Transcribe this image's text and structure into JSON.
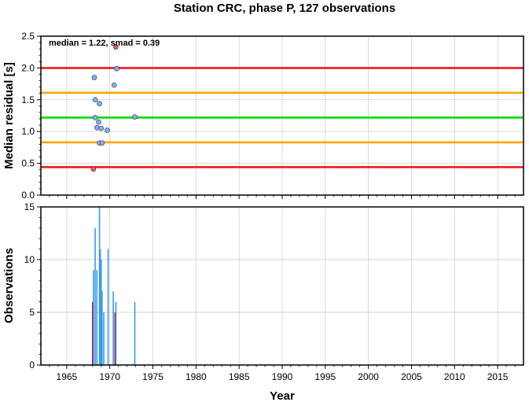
{
  "chart_data": [
    {
      "type": "scatter",
      "title": "Station CRC, phase P, 127 observations",
      "annotation": "median = 1.22, smad = 0.39",
      "xlabel": "",
      "ylabel": "Median residual [s]",
      "xlim": [
        1962,
        2018
      ],
      "ylim": [
        0,
        2.5
      ],
      "y_ticks": [
        "0.0",
        "0.5",
        "1.0",
        "1.5",
        "2.0",
        "2.5"
      ],
      "grid": true,
      "hlines": [
        {
          "y": 2.0,
          "color": "#ee1c1c"
        },
        {
          "y": 1.61,
          "color": "#ffa500"
        },
        {
          "y": 1.22,
          "color": "#00dd00"
        },
        {
          "y": 0.83,
          "color": "#ffa500"
        },
        {
          "y": 0.44,
          "color": "#ee1c1c"
        }
      ],
      "series": [
        {
          "color": "#7eb0ff",
          "points": [
            {
              "x": 1968.2,
              "y": 1.85
            },
            {
              "x": 1968.3,
              "y": 1.5
            },
            {
              "x": 1968.3,
              "y": 1.22
            },
            {
              "x": 1968.5,
              "y": 1.06
            },
            {
              "x": 1968.7,
              "y": 1.15
            },
            {
              "x": 1968.8,
              "y": 1.44
            },
            {
              "x": 1969.0,
              "y": 1.05
            },
            {
              "x": 1968.8,
              "y": 0.82
            },
            {
              "x": 1969.1,
              "y": 0.82
            },
            {
              "x": 1969.7,
              "y": 1.02
            },
            {
              "x": 1970.5,
              "y": 1.73
            },
            {
              "x": 1970.8,
              "y": 1.99
            },
            {
              "x": 1972.9,
              "y": 1.23
            }
          ]
        },
        {
          "color": "#ff5555",
          "points": [
            {
              "x": 1968.1,
              "y": 0.41
            },
            {
              "x": 1970.7,
              "y": 2.33
            }
          ]
        }
      ]
    },
    {
      "type": "bar",
      "xlabel": "Year",
      "ylabel": "Observations",
      "xlim": [
        1962,
        2018
      ],
      "ylim": [
        0,
        15
      ],
      "x_ticks": [
        "1965",
        "1970",
        "1975",
        "1980",
        "1985",
        "1990",
        "1995",
        "2000",
        "2005",
        "2010",
        "2015"
      ],
      "y_ticks": [
        "0",
        "5",
        "10",
        "15"
      ],
      "grid": true,
      "series": [
        {
          "color": "#3b9be8",
          "bars": [
            {
              "x": 1968.1,
              "y": 9
            },
            {
              "x": 1968.3,
              "y": 13
            },
            {
              "x": 1968.5,
              "y": 9
            },
            {
              "x": 1968.8,
              "y": 15
            },
            {
              "x": 1968.9,
              "y": 11
            },
            {
              "x": 1969.0,
              "y": 10
            },
            {
              "x": 1969.1,
              "y": 7
            },
            {
              "x": 1969.3,
              "y": 5
            },
            {
              "x": 1969.8,
              "y": 11
            },
            {
              "x": 1970.4,
              "y": 7
            },
            {
              "x": 1970.7,
              "y": 6
            },
            {
              "x": 1972.9,
              "y": 6
            }
          ]
        },
        {
          "color": "#b0205a",
          "bars": [
            {
              "x": 1968.0,
              "y": 6
            },
            {
              "x": 1970.6,
              "y": 5
            }
          ]
        }
      ]
    }
  ]
}
